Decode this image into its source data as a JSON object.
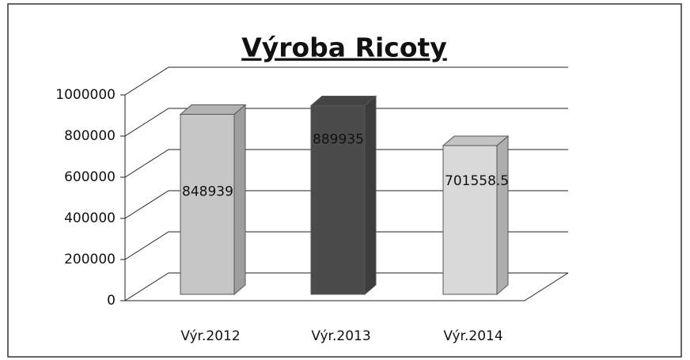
{
  "chart_data": {
    "type": "bar3d",
    "title": "Výroba Ricoty",
    "categories": [
      "Výr.2012",
      "Výr.2013",
      "Výr.2014"
    ],
    "values": [
      848939,
      889935,
      701558.5
    ],
    "colors": [
      "#c6c6c6",
      "#4b4b4b",
      "#d9d9d9"
    ],
    "ylim": [
      0,
      1000000
    ],
    "yticks": [
      0,
      200000,
      400000,
      600000,
      800000,
      1000000
    ],
    "grid": true
  }
}
